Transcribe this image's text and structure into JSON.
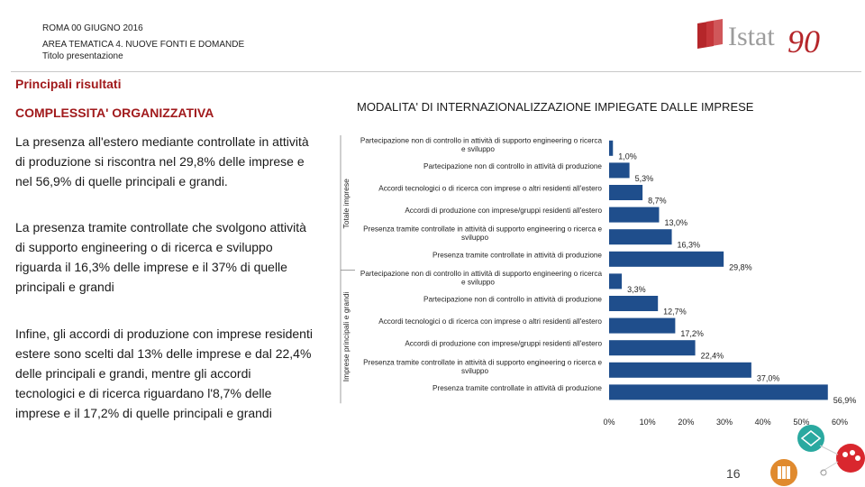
{
  "header": {
    "line1": "ROMA 00 GIUGNO 2016",
    "line2": "AREA TEMATICA 4. NUOVE FONTI E DOMANDE",
    "line3": "Titolo presentazione"
  },
  "logo": {
    "text": "Istat",
    "number": "90",
    "icon": "istat-logo-icon",
    "brand_color": "#b5262a"
  },
  "section_title": "Principali risultati",
  "subtitle": "COMPLESSITA' ORGANIZZATIVA",
  "paragraphs": [
    "La presenza all'estero mediante controllate in attività di produzione si riscontra nel 29,8% delle imprese e nel 56,9% di quelle principali e grandi.",
    "La presenza tramite controllate che svolgono attività di supporto engineering o di ricerca e sviluppo riguarda il 16,3% delle imprese e il 37% di quelle principali e grandi",
    "Infine, gli accordi di produzione con imprese residenti estere sono scelti dal 13% delle imprese e dal 22,4% delle principali e grandi, mentre gli accordi tecnologici e di ricerca riguardano l'8,7% delle imprese e il 17,2% di quelle principali e grandi"
  ],
  "page_number": "16",
  "chart_data": {
    "type": "bar",
    "orientation": "horizontal",
    "title": "MODALITA' DI INTERNAZIONALIZZAZIONE IMPIEGATE DALLE IMPRESE",
    "bar_color": "#1f4e8c",
    "xlim": [
      0,
      60
    ],
    "xticks": [
      "0%",
      "10%",
      "20%",
      "30%",
      "40%",
      "50%",
      "60%"
    ],
    "groups": [
      {
        "name": "Totale imprese",
        "items": [
          {
            "label": [
              "Partecipazione non di controllo in attività di supporto engineering o ricerca",
              "e sviluppo"
            ],
            "value": 1.0,
            "value_label": "1,0%"
          },
          {
            "label": [
              "Partecipazione non di controllo in attività di produzione"
            ],
            "value": 5.3,
            "value_label": "5,3%"
          },
          {
            "label": [
              "Accordi tecnologici o di ricerca con imprese o altri residenti all'estero"
            ],
            "value": 8.7,
            "value_label": "8,7%"
          },
          {
            "label": [
              "Accordi di produzione con imprese/gruppi residenti all'estero"
            ],
            "value": 13.0,
            "value_label": "13,0%"
          },
          {
            "label": [
              "Presenza tramite controllate in attività di supporto engineering o ricerca e",
              "sviluppo"
            ],
            "value": 16.3,
            "value_label": "16,3%"
          },
          {
            "label": [
              "Presenza tramite controllate in attività di produzione"
            ],
            "value": 29.8,
            "value_label": "29,8%"
          }
        ]
      },
      {
        "name": "Imprese principali e grandi",
        "items": [
          {
            "label": [
              "Partecipazione non di controllo in attività di supporto engineering o ricerca",
              "e sviluppo"
            ],
            "value": 3.3,
            "value_label": "3,3%"
          },
          {
            "label": [
              "Partecipazione non di controllo in attività di produzione"
            ],
            "value": 12.7,
            "value_label": "12,7%"
          },
          {
            "label": [
              "Accordi tecnologici o di ricerca con imprese o altri residenti all'estero"
            ],
            "value": 17.2,
            "value_label": "17,2%"
          },
          {
            "label": [
              "Accordi di produzione con imprese/gruppi residenti all'estero"
            ],
            "value": 22.4,
            "value_label": "22,4%"
          },
          {
            "label": [
              "Presenza tramite controllate in attività di supporto engineering o ricerca e",
              "sviluppo"
            ],
            "value": 37.0,
            "value_label": "37,0%"
          },
          {
            "label": [
              "Presenza tramite controllate in attività di produzione"
            ],
            "value": 56.9,
            "value_label": "56,9%"
          }
        ]
      }
    ]
  }
}
